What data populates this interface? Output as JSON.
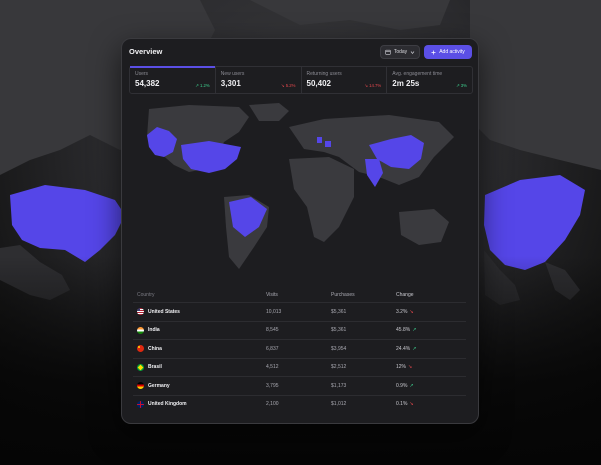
{
  "header": {
    "title": "Overview",
    "today_label": "Today",
    "add_label": "Add activity"
  },
  "stats": [
    {
      "label": "Users",
      "value": "54,382",
      "change": "1.2%",
      "direction": "up"
    },
    {
      "label": "New users",
      "value": "3,301",
      "change": "5.2%",
      "direction": "down"
    },
    {
      "label": "Returning users",
      "value": "50,402",
      "change": "14.7%",
      "direction": "down"
    },
    {
      "label": "Avg. engagement time",
      "value": "2m 25s",
      "change": "3%",
      "direction": "up"
    }
  ],
  "table": {
    "headers": [
      "Country",
      "Visits",
      "Purchases",
      "Change"
    ],
    "rows": [
      {
        "country": "United States",
        "visits": "10,013",
        "purchases": "$5,361",
        "change": "3.2%",
        "direction": "down",
        "flag": "us-flag-icon"
      },
      {
        "country": "India",
        "visits": "8,545",
        "purchases": "$5,361",
        "change": "45.8%",
        "direction": "up",
        "flag": "india-flag-icon"
      },
      {
        "country": "China",
        "visits": "6,837",
        "purchases": "$3,954",
        "change": "24.4%",
        "direction": "up",
        "flag": "china-flag-icon"
      },
      {
        "country": "Brasil",
        "visits": "4,512",
        "purchases": "$2,512",
        "change": "12%",
        "direction": "down",
        "flag": "brazil-flag-icon"
      },
      {
        "country": "Germany",
        "visits": "3,795",
        "purchases": "$1,173",
        "change": "0.9%",
        "direction": "up",
        "flag": "germany-flag-icon"
      },
      {
        "country": "United Kingdom",
        "visits": "2,100",
        "purchases": "$1,012",
        "change": "0.1%",
        "direction": "down",
        "flag": "uk-flag-icon"
      }
    ]
  },
  "colors": {
    "accent": "#5b4fe6",
    "highlight_country": "#5546e8",
    "land": "#3a3a3e",
    "up": "#3ecf8e",
    "down": "#e5484d"
  }
}
